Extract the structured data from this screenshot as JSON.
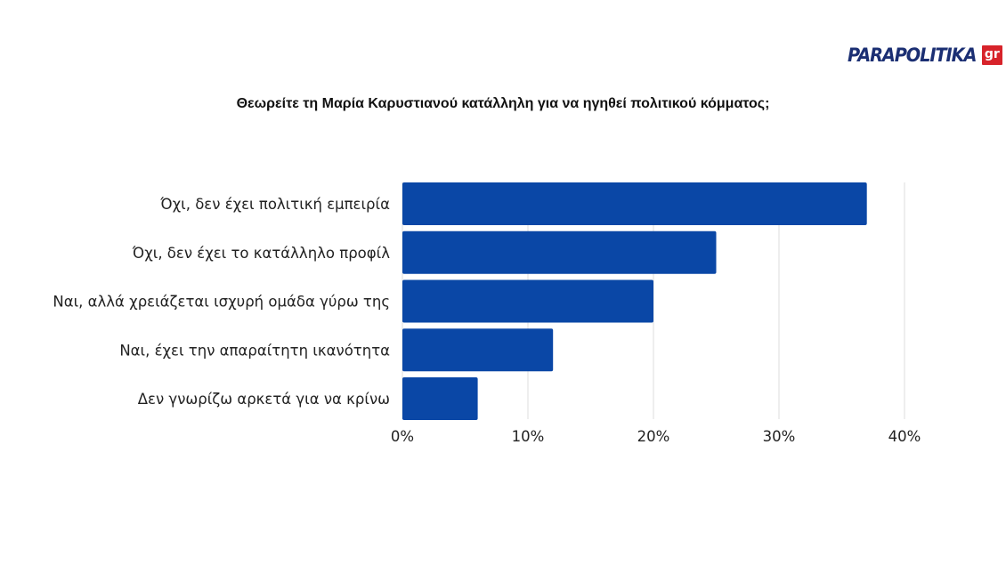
{
  "logo": {
    "word": "PARAPOLITIKA",
    "suffix": "gr"
  },
  "chart_data": {
    "type": "bar",
    "orientation": "horizontal",
    "title": "Θεωρείτε τη Μαρία Καρυστιανού κατάλληλη για να ηγηθεί πολιτικού κόμματος;",
    "categories": [
      "Όχι, δεν έχει πολιτική εμπειρία",
      "Όχι, δεν έχει το κατάλληλο προφίλ",
      "Ναι, αλλά χρειάζεται ισχυρή ομάδα γύρω της",
      "Ναι, έχει την απαραίτητη ικανότητα",
      "Δεν γνωρίζω αρκετά για να κρίνω"
    ],
    "values": [
      37,
      25,
      20,
      12,
      6
    ],
    "xlim": [
      0,
      40
    ],
    "ticks": [
      "0%",
      "10%",
      "20%",
      "30%",
      "40%"
    ],
    "bar_color": "#0a47a6",
    "grid": true,
    "legend": false
  }
}
